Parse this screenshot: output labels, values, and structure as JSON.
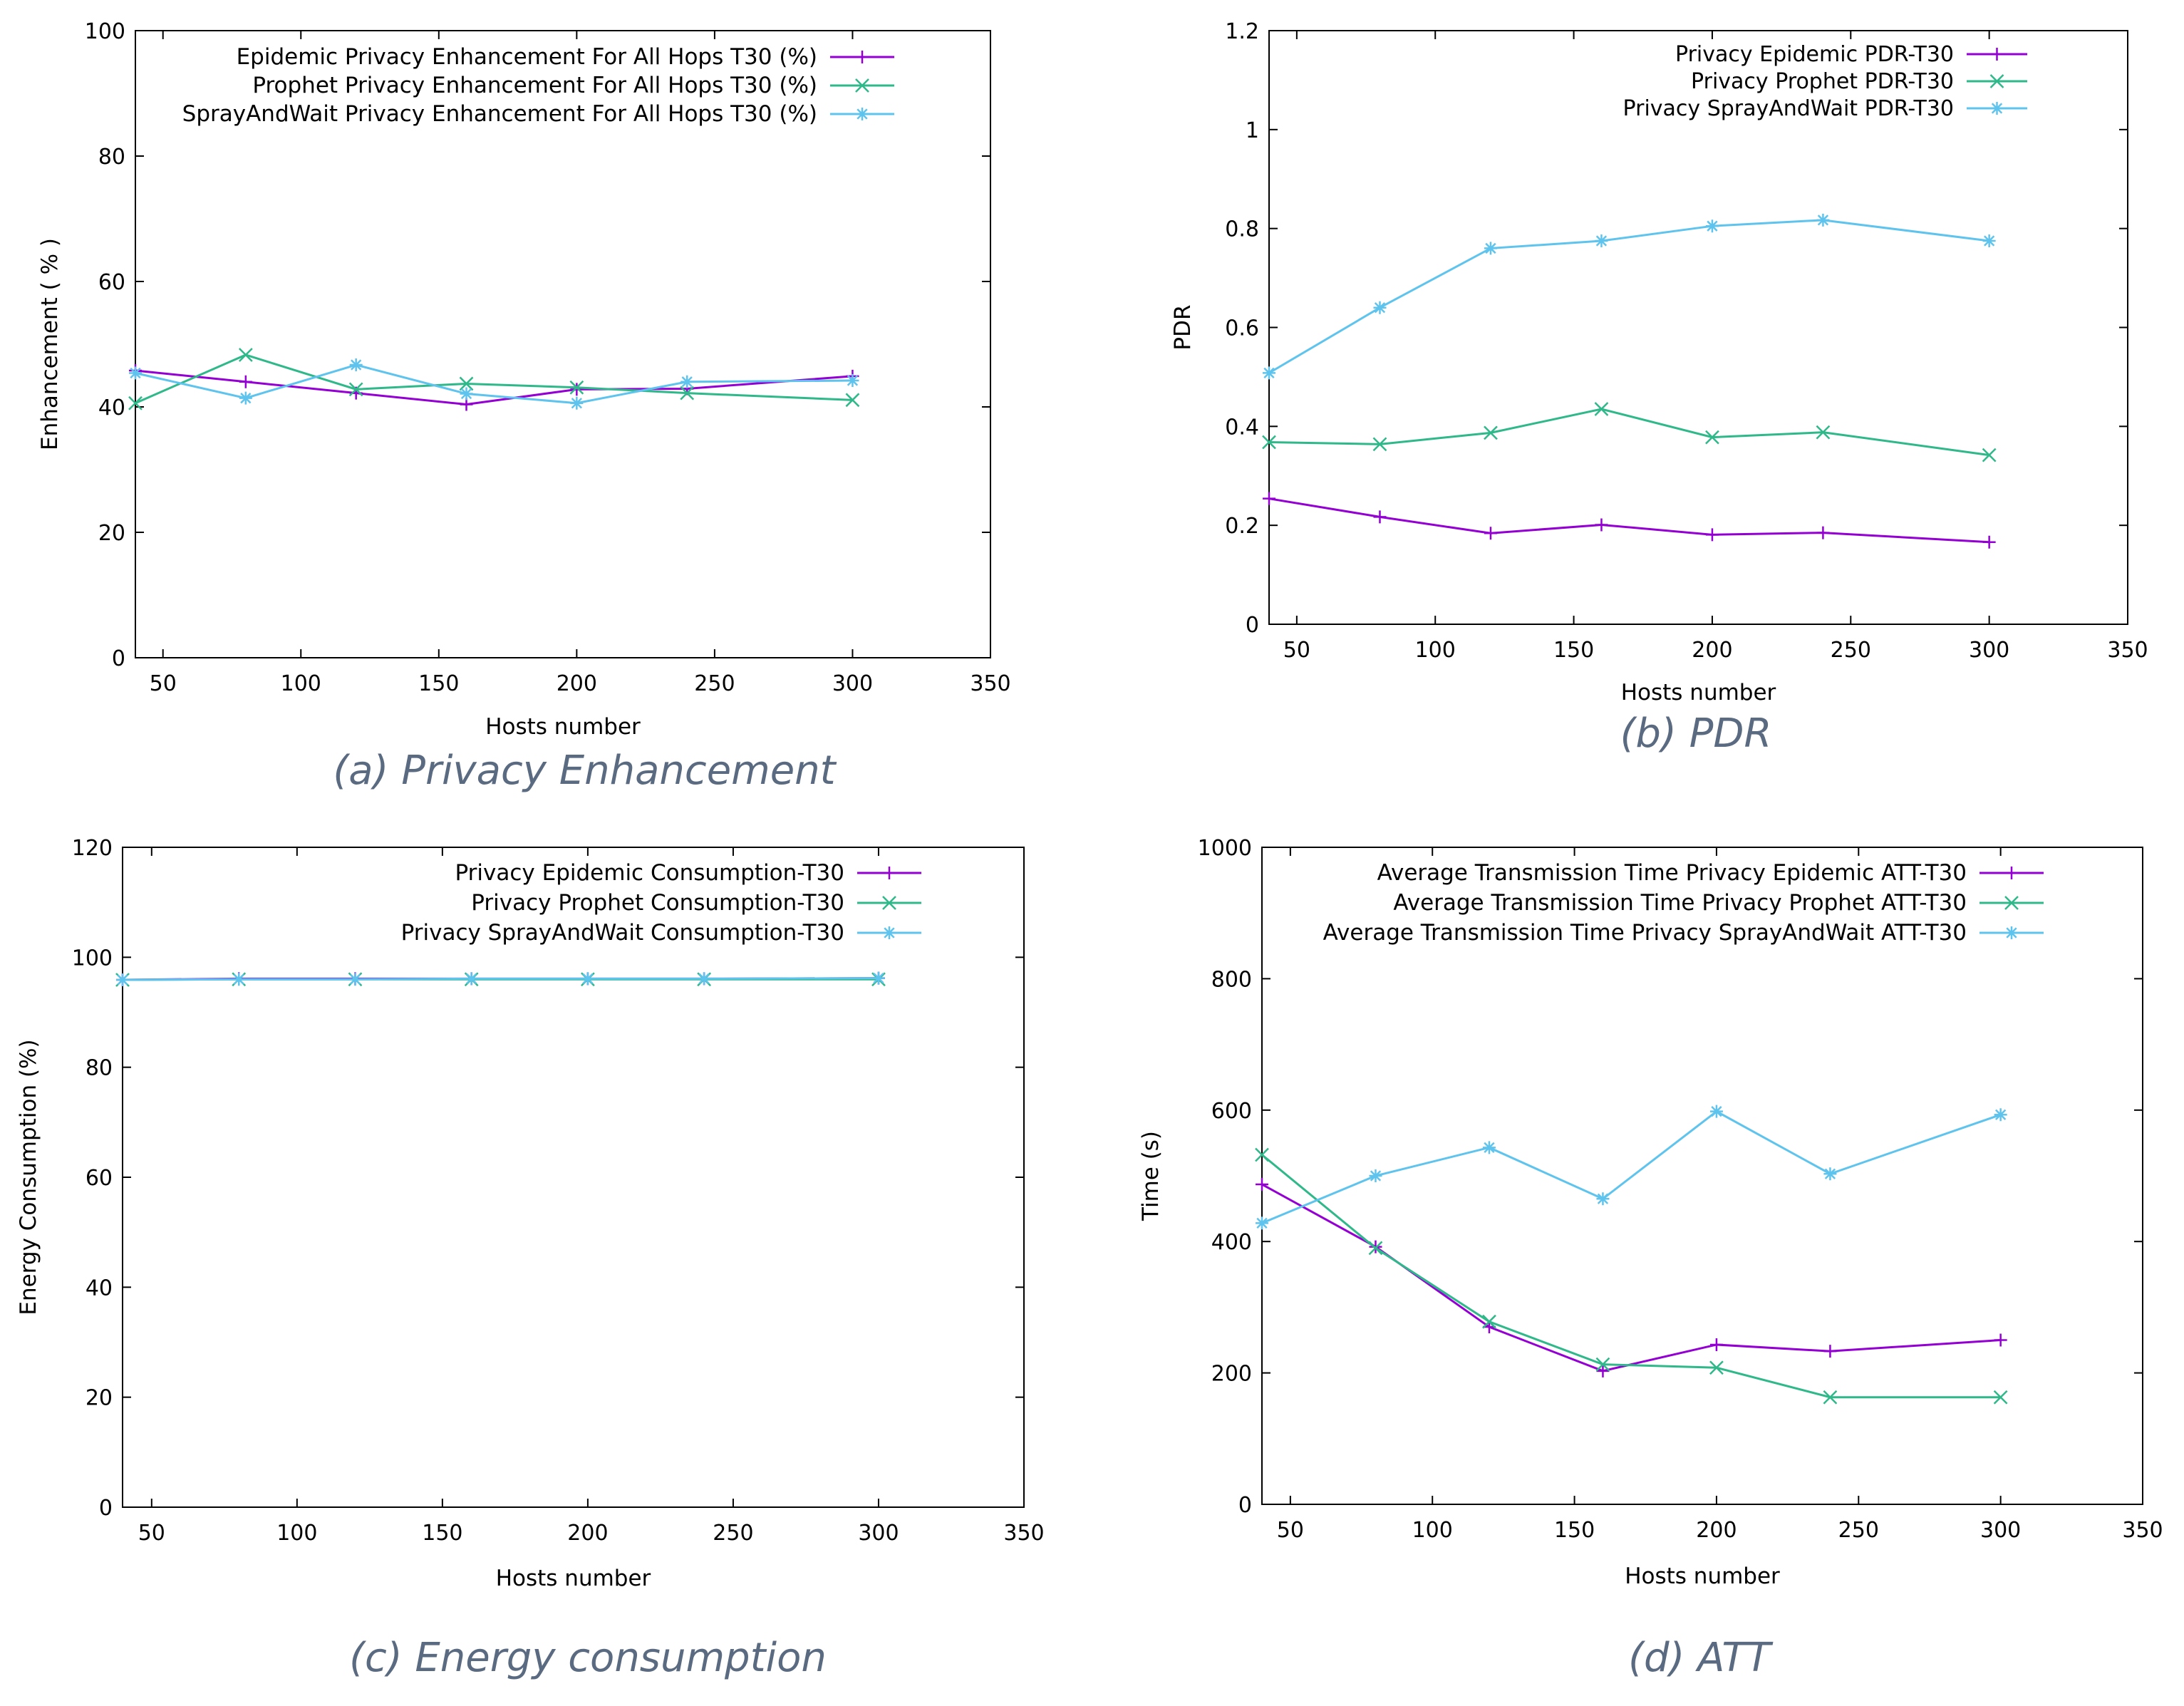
{
  "colors": {
    "epidemic": "#9400d3",
    "prophet": "#2fb88a",
    "spraywait": "#5ec4ee",
    "axis": "#000000",
    "caption": "#5a6a80"
  },
  "chart_data": [
    {
      "id": "a",
      "type": "line",
      "caption": "(a) Privacy Enhancement",
      "title": "",
      "xlabel": "Hosts number",
      "ylabel": "Enhancement ( % )",
      "xlim": [
        40,
        350
      ],
      "ylim": [
        0,
        100
      ],
      "xticks": [
        50,
        100,
        150,
        200,
        250,
        300,
        350
      ],
      "xtick_labels": [
        "50",
        "100",
        "150",
        "200",
        "250",
        "300",
        "350"
      ],
      "yticks": [
        0,
        20,
        40,
        60,
        80,
        100
      ],
      "ytick_labels": [
        "0",
        "20",
        "40",
        "60",
        "80",
        "100"
      ],
      "legend_position": "top-right",
      "series": [
        {
          "name": "Epidemic Privacy Enhancement For All Hops T30 (%)",
          "marker": "plus",
          "color_key": "epidemic",
          "x": [
            40,
            80,
            120,
            160,
            200,
            240,
            300
          ],
          "y": [
            45.8,
            44.0,
            42.2,
            40.4,
            42.8,
            42.9,
            44.9
          ]
        },
        {
          "name": "Prophet Privacy Enhancement For All Hops T30 (%)",
          "marker": "cross",
          "color_key": "prophet",
          "x": [
            40,
            80,
            120,
            160,
            200,
            240,
            300
          ],
          "y": [
            40.6,
            48.3,
            42.8,
            43.7,
            43.1,
            42.2,
            41.1
          ]
        },
        {
          "name": "SprayAndWait Privacy Enhancement For All Hops T30 (%)",
          "marker": "star",
          "color_key": "spraywait",
          "x": [
            40,
            80,
            120,
            160,
            200,
            240,
            300
          ],
          "y": [
            45.4,
            41.4,
            46.7,
            42.1,
            40.6,
            44.0,
            44.2
          ]
        }
      ]
    },
    {
      "id": "b",
      "type": "line",
      "caption": "(b) PDR",
      "title": "",
      "xlabel": "Hosts number",
      "ylabel": "PDR",
      "xlim": [
        40,
        350
      ],
      "ylim": [
        0,
        1.2
      ],
      "xticks": [
        50,
        100,
        150,
        200,
        250,
        300,
        350
      ],
      "xtick_labels": [
        "50",
        "100",
        "150",
        "200",
        "250",
        "300",
        "350"
      ],
      "yticks": [
        0,
        0.2,
        0.4,
        0.6,
        0.8,
        1.0,
        1.2
      ],
      "ytick_labels": [
        "0",
        "0.2",
        "0.4",
        "0.6",
        "0.8",
        "1",
        "1.2"
      ],
      "legend_position": "top-right",
      "series": [
        {
          "name": "Privacy Epidemic PDR-T30",
          "marker": "plus",
          "color_key": "epidemic",
          "x": [
            40,
            80,
            120,
            160,
            200,
            240,
            300
          ],
          "y": [
            0.254,
            0.217,
            0.184,
            0.201,
            0.181,
            0.185,
            0.166
          ]
        },
        {
          "name": "Privacy Prophet PDR-T30",
          "marker": "cross",
          "color_key": "prophet",
          "x": [
            40,
            80,
            120,
            160,
            200,
            240,
            300
          ],
          "y": [
            0.368,
            0.364,
            0.387,
            0.435,
            0.378,
            0.388,
            0.342
          ]
        },
        {
          "name": "Privacy SprayAndWait PDR-T30",
          "marker": "star",
          "color_key": "spraywait",
          "x": [
            40,
            80,
            120,
            160,
            200,
            240,
            300
          ],
          "y": [
            0.508,
            0.64,
            0.76,
            0.775,
            0.805,
            0.817,
            0.775
          ]
        }
      ]
    },
    {
      "id": "c",
      "type": "line",
      "caption": "(c) Energy consumption",
      "title": "",
      "xlabel": "Hosts number",
      "ylabel": "Energy Consumption (%)",
      "xlim": [
        40,
        350
      ],
      "ylim": [
        0,
        120
      ],
      "xticks": [
        50,
        100,
        150,
        200,
        250,
        300,
        350
      ],
      "xtick_labels": [
        "50",
        "100",
        "150",
        "200",
        "250",
        "300",
        "350"
      ],
      "yticks": [
        0,
        20,
        40,
        60,
        80,
        100,
        120
      ],
      "ytick_labels": [
        "0",
        "20",
        "40",
        "60",
        "80",
        "100",
        "120"
      ],
      "legend_position": "top-right",
      "series": [
        {
          "name": "Privacy Epidemic Consumption-T30",
          "marker": "plus",
          "color_key": "epidemic",
          "x": [
            40,
            80,
            120,
            160,
            200,
            240,
            300
          ],
          "y": [
            95.9,
            96.1,
            96.1,
            96.1,
            96.1,
            96.1,
            96.2
          ]
        },
        {
          "name": "Privacy Prophet Consumption-T30",
          "marker": "cross",
          "color_key": "prophet",
          "x": [
            40,
            80,
            120,
            160,
            200,
            240,
            300
          ],
          "y": [
            95.9,
            96.0,
            96.0,
            96.0,
            96.0,
            96.0,
            96.0
          ]
        },
        {
          "name": "Privacy SprayAndWait Consumption-T30",
          "marker": "star",
          "color_key": "spraywait",
          "x": [
            40,
            80,
            120,
            160,
            200,
            240,
            300
          ],
          "y": [
            95.9,
            96.0,
            96.0,
            96.1,
            96.1,
            96.1,
            96.2
          ]
        }
      ]
    },
    {
      "id": "d",
      "type": "line",
      "caption": "(d) ATT",
      "title": "",
      "xlabel": "Hosts number",
      "ylabel": "Time (s)",
      "xlim": [
        40,
        350
      ],
      "ylim": [
        0,
        1000
      ],
      "xticks": [
        50,
        100,
        150,
        200,
        250,
        300,
        350
      ],
      "xtick_labels": [
        "50",
        "100",
        "150",
        "200",
        "250",
        "300",
        "350"
      ],
      "yticks": [
        0,
        200,
        400,
        600,
        800,
        1000
      ],
      "ytick_labels": [
        "0",
        "200",
        "400",
        "600",
        "800",
        "1000"
      ],
      "legend_position": "top-right",
      "series": [
        {
          "name": "Average Transmission Time Privacy Epidemic ATT-T30",
          "marker": "plus",
          "color_key": "epidemic",
          "x": [
            40,
            80,
            120,
            160,
            200,
            240,
            300
          ],
          "y": [
            487,
            392,
            270,
            203,
            243,
            233,
            250
          ]
        },
        {
          "name": "Average Transmission Time Privacy Prophet ATT-T30",
          "marker": "cross",
          "color_key": "prophet",
          "x": [
            40,
            80,
            120,
            160,
            200,
            240,
            300
          ],
          "y": [
            532,
            390,
            278,
            213,
            208,
            163,
            163
          ]
        },
        {
          "name": "Average Transmission Time Privacy SprayAndWait ATT-T30",
          "marker": "star",
          "color_key": "spraywait",
          "x": [
            40,
            80,
            120,
            160,
            200,
            240,
            300
          ],
          "y": [
            428,
            500,
            543,
            465,
            598,
            503,
            593
          ]
        }
      ]
    }
  ]
}
